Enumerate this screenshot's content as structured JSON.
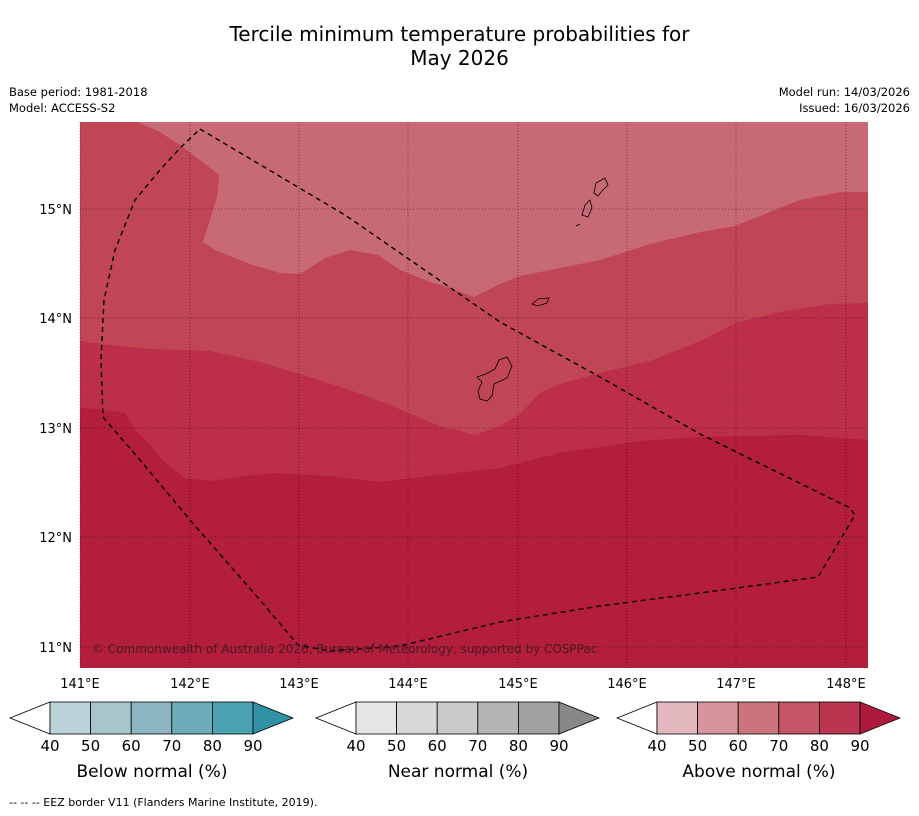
{
  "title_line1": "Tercile minimum temperature probabilities for",
  "title_line2": "May 2026",
  "base_period": "Base period: 1981-2018",
  "model": "Model: ACCESS-S2",
  "model_run": "Model run: 14/03/2026",
  "issued": "Issued: 16/03/2026",
  "copyright": "© Commonwealth of Australia 2026, Bureau of Meteorology, supported by COSPPac",
  "lon_labels": [
    "141°E",
    "142°E",
    "143°E",
    "144°E",
    "145°E",
    "146°E",
    "147°E",
    "148°E"
  ],
  "lat_labels": [
    "15°N",
    "14°N",
    "13°N",
    "12°N",
    "11°N"
  ],
  "colorbars": [
    {
      "name": "below",
      "label": "Below normal (%)",
      "ticks": [
        "40",
        "50",
        "60",
        "70",
        "80",
        "90"
      ],
      "colors": [
        "#ffffff",
        "#bcd3da",
        "#a7c6cc",
        "#8ab5c1",
        "#6eacbb",
        "#4aa2b2",
        "#3090a4"
      ]
    },
    {
      "name": "near",
      "label": "Near normal (%)",
      "ticks": [
        "40",
        "50",
        "60",
        "70",
        "80",
        "90"
      ],
      "colors": [
        "#ffffff",
        "#e5e5e5",
        "#d8d8d8",
        "#c9c9c9",
        "#b5b5b5",
        "#a1a1a1",
        "#888888"
      ]
    },
    {
      "name": "above",
      "label": "Above normal (%)",
      "ticks": [
        "40",
        "50",
        "60",
        "70",
        "80",
        "90"
      ],
      "colors": [
        "#ffffff",
        "#e2b8be",
        "#d6959d",
        "#cc747e",
        "#c45565",
        "#bb3450",
        "#ad1a3b"
      ]
    }
  ],
  "footnote": "--  --  -- EEZ border V11 (Flanders Marine Institute, 2019)."
}
